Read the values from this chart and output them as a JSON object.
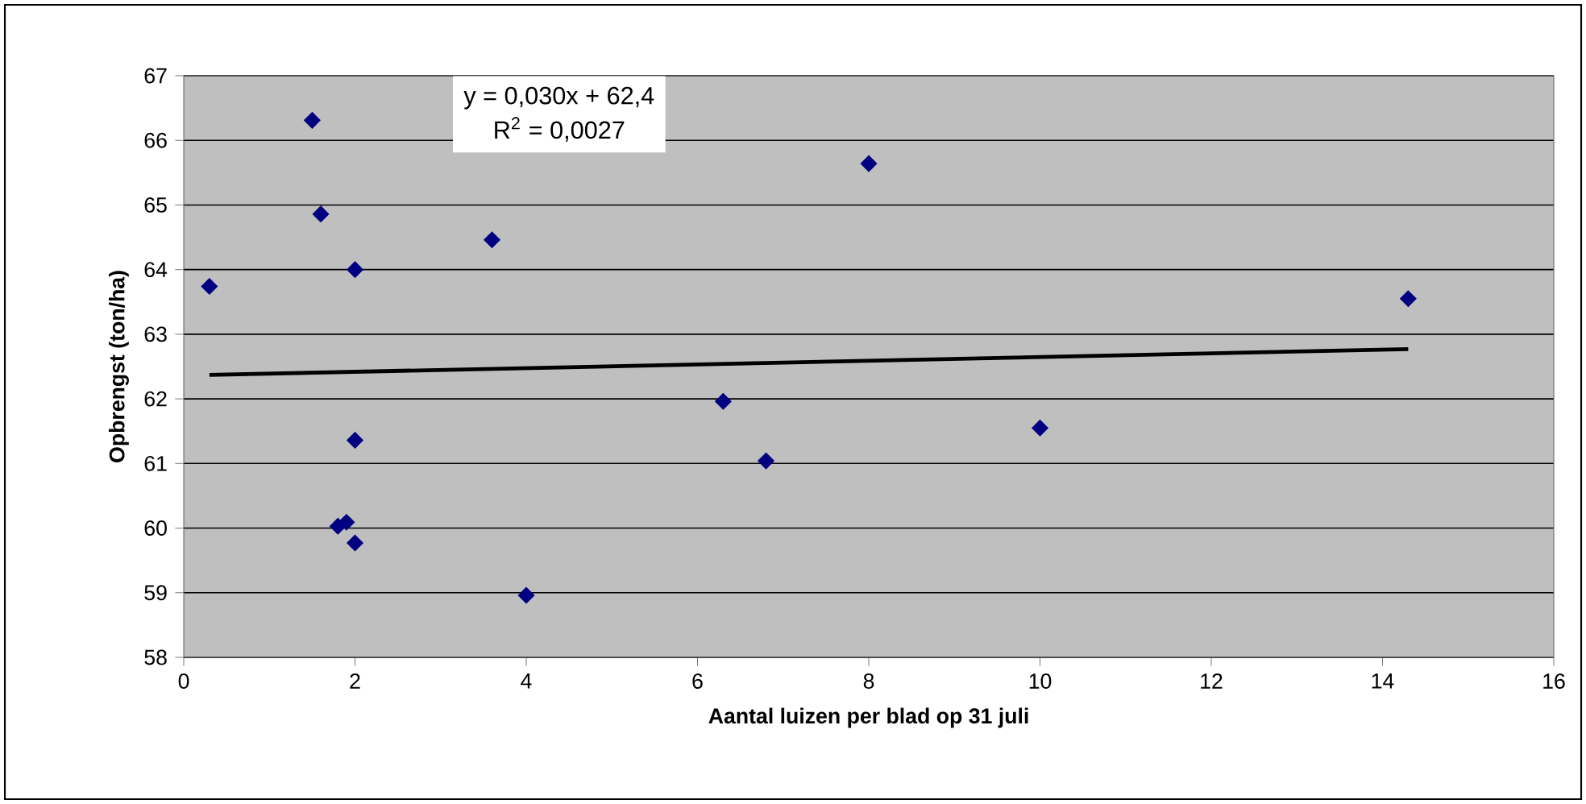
{
  "chart_data": {
    "type": "scatter",
    "xlabel": "Aantal luizen per blad op 31 juli",
    "ylabel": "Opbrengst (ton/ha)",
    "annotations": [
      "y = 0,030x + 62,4",
      "R$^{2}$ = 0,0027"
    ],
    "series": [
      {
        "color": "#000080",
        "marker": "diamond",
        "x": [
          0.3,
          1.5,
          1.6,
          2,
          3.6,
          2,
          1.8,
          1.9,
          2,
          4,
          8,
          14.3,
          6.3,
          6.8,
          10
        ],
        "values": [
          63.74,
          66.31,
          64.86,
          64.0,
          64.46,
          61.36,
          60.03,
          60.09,
          59.77,
          58.96,
          65.64,
          63.55,
          61.96,
          61.04,
          61.55
        ]
      },
      {
        "type": "line",
        "color": "#000000",
        "line_style": "solid",
        "x": [
          0.3,
          14.3
        ],
        "values": [
          62.37,
          62.77
        ]
      }
    ],
    "xlim": [
      0,
      16
    ],
    "xticks": [
      0,
      2,
      4,
      6,
      8,
      10,
      12,
      14,
      16
    ],
    "ylim": [
      58,
      67
    ],
    "yticks": [
      58,
      59,
      60,
      61,
      62,
      63,
      64,
      65,
      66,
      67
    ],
    "grid": "y"
  }
}
